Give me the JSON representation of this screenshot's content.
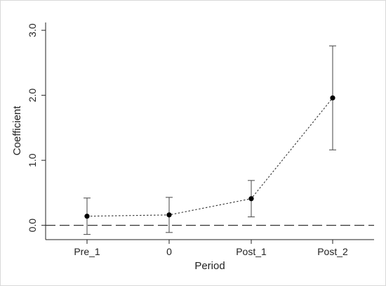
{
  "chart_data": {
    "type": "scatter",
    "xlabel": "Period",
    "ylabel": "Coefficient",
    "categories": [
      "Pre_1",
      "0",
      "Post_1",
      "Post_2"
    ],
    "series": [
      {
        "values": [
          0.14,
          0.16,
          0.41,
          1.96
        ],
        "ci_lower": [
          -0.14,
          -0.11,
          0.13,
          1.16
        ],
        "ci_upper": [
          0.42,
          0.43,
          0.69,
          2.76
        ]
      }
    ],
    "yticks": [
      "0.0",
      "1.0",
      "2.0",
      "3.0"
    ],
    "ytick_values": [
      0,
      1,
      2,
      3
    ],
    "ylim": [
      -0.22,
      3.12
    ],
    "reference_line_y": 0,
    "grid": false,
    "colors": {
      "marker": "#000000",
      "errorbar": "#555555",
      "connector": "#333333",
      "reference_line": "#333333",
      "axis": "#222222"
    }
  }
}
